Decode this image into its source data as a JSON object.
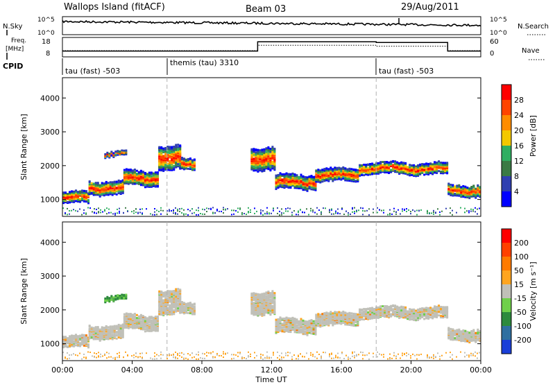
{
  "header": {
    "title": "Wallops Island (fitACF)",
    "beam": "Beam 03",
    "date": "29/Aug/2011"
  },
  "noise_panel": {
    "left_label": "N.Sky",
    "right_label": "N.Search",
    "left_ticks": [
      "10^5",
      "10^0"
    ],
    "right_ticks": [
      "10^5",
      "10^0"
    ]
  },
  "freq_panel": {
    "left_label_1": "Freq.",
    "left_label_2": "[MHz]",
    "right_label": "Nave",
    "left_ticks": [
      "18",
      "8"
    ],
    "right_ticks": [
      "60",
      "0"
    ],
    "freq_steps": [
      {
        "start_h": 0.0,
        "end_h": 11.2,
        "level": 0.7
      },
      {
        "start_h": 11.2,
        "end_h": 18.0,
        "level": 0.22
      },
      {
        "start_h": 18.0,
        "end_h": 22.1,
        "level": 0.26
      },
      {
        "start_h": 22.1,
        "end_h": 24.0,
        "level": 0.7
      }
    ],
    "nave_steps": [
      {
        "start_h": 0.0,
        "end_h": 11.2,
        "level": 0.68
      },
      {
        "start_h": 11.2,
        "end_h": 18.0,
        "level": 0.4
      },
      {
        "start_h": 18.0,
        "end_h": 22.1,
        "level": 0.45
      },
      {
        "start_h": 22.1,
        "end_h": 24.0,
        "level": 0.68
      }
    ]
  },
  "cpid": {
    "label": "CPID",
    "segments": [
      {
        "start_h": 0.0,
        "text": "tau (fast) -503"
      },
      {
        "start_h": 6.0,
        "text": "themis (tau) 3310"
      },
      {
        "start_h": 18.0,
        "text": "tau (fast) -503"
      }
    ]
  },
  "chart_data": [
    {
      "type": "heatmap",
      "name": "power",
      "ylabel": "Slant Range [km]",
      "ylim": [
        500,
        4600
      ],
      "yticks": [
        1000,
        2000,
        3000,
        4000
      ],
      "colorbar_label": "Power [dB]",
      "colorbar_ticks": [
        "28",
        "24",
        "20",
        "16",
        "12",
        "8",
        "4"
      ],
      "colors": [
        "#0000ff",
        "#2f3fb0",
        "#3a7a44",
        "#2fae61",
        "#f3c800",
        "#ff8c00",
        "#ff4400",
        "#ff0000"
      ]
    },
    {
      "type": "heatmap",
      "name": "velocity",
      "ylabel": "Slant Range [km]",
      "ylim": [
        500,
        4600
      ],
      "yticks": [
        1000,
        2000,
        3000,
        4000
      ],
      "xticks": [
        "00:00",
        "04:00",
        "08:00",
        "12:00",
        "16:00",
        "20:00",
        "00:00"
      ],
      "xlabel": "Time UT",
      "colorbar_label": "Velocity [m s⁻¹]",
      "colorbar_ticks": [
        "200",
        "100",
        "50",
        "15",
        "-15",
        "-50",
        "-100",
        "-200"
      ],
      "colors": [
        "#1a3fd8",
        "#2f6fa0",
        "#2d8a3d",
        "#6fd04a",
        "#c0c0b8",
        "#ffa51f",
        "#ff7a00",
        "#ff4000",
        "#ff0000"
      ]
    }
  ],
  "scatter_bands": [
    {
      "from_h": 0.0,
      "to_h": 1.5,
      "center_km": 1100,
      "width_km": 320
    },
    {
      "from_h": 1.5,
      "to_h": 3.5,
      "center_km": 1380,
      "width_km": 380
    },
    {
      "from_h": 3.5,
      "to_h": 5.5,
      "center_km": 1650,
      "width_km": 420
    },
    {
      "from_h": 5.5,
      "to_h": 6.8,
      "center_km": 2250,
      "width_km": 700
    },
    {
      "from_h": 6.8,
      "to_h": 7.6,
      "center_km": 2050,
      "width_km": 320
    },
    {
      "from_h": 2.4,
      "to_h": 3.6,
      "center_km": 2380,
      "width_km": 120
    },
    {
      "from_h": 10.8,
      "to_h": 12.2,
      "center_km": 2250,
      "width_km": 650
    },
    {
      "from_h": 12.2,
      "to_h": 14.5,
      "center_km": 1550,
      "width_km": 400
    },
    {
      "from_h": 14.5,
      "to_h": 17.0,
      "center_km": 1750,
      "width_km": 360
    },
    {
      "from_h": 17.0,
      "to_h": 22.1,
      "center_km": 1950,
      "width_km": 320
    },
    {
      "from_h": 22.1,
      "to_h": 24.0,
      "center_km": 1300,
      "width_km": 330
    }
  ]
}
